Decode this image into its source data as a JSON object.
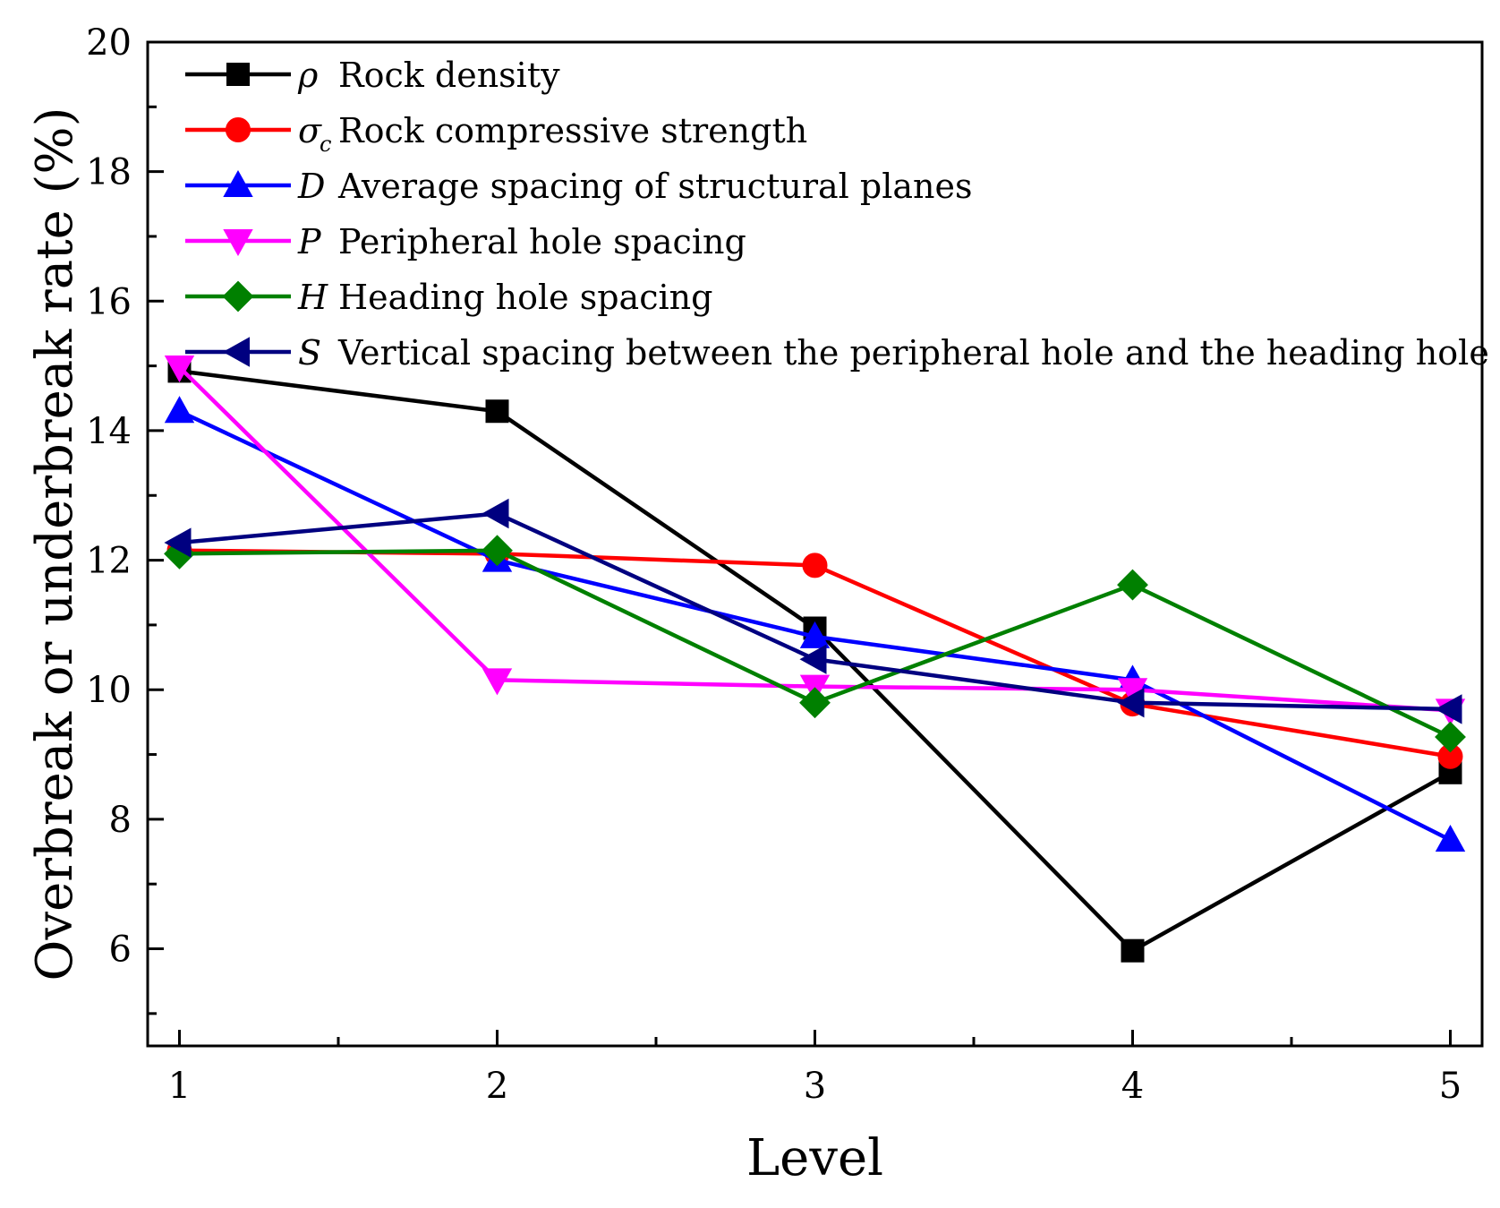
{
  "chart_data": {
    "type": "line",
    "title": "",
    "xlabel": "Level",
    "ylabel": "Overbreak or underbreak rate (%)",
    "x": [
      1,
      2,
      3,
      4,
      5
    ],
    "xlim": [
      0.9,
      5.1
    ],
    "ylim": [
      4.5,
      20
    ],
    "xticks": [
      "1",
      "2",
      "3",
      "4",
      "5"
    ],
    "yticks": [
      "6",
      "8",
      "10",
      "12",
      "14",
      "16",
      "18",
      "20"
    ],
    "legend_position": "top-left",
    "series": [
      {
        "symbol": "ρ",
        "subscript": "",
        "name": "Rock density",
        "color": "#000000",
        "marker": "square",
        "values": [
          14.92,
          14.3,
          10.95,
          5.97,
          8.72
        ]
      },
      {
        "symbol": "σ",
        "subscript": "c",
        "name": "Rock compressive strength",
        "color": "#ff0000",
        "marker": "circle",
        "values": [
          12.15,
          12.1,
          11.92,
          9.78,
          8.97
        ]
      },
      {
        "symbol": "D",
        "subscript": "",
        "name": "Average spacing of structural planes",
        "color": "#0000ff",
        "marker": "triangle-up",
        "values": [
          14.3,
          12.0,
          10.82,
          10.15,
          7.68
        ]
      },
      {
        "symbol": "P",
        "subscript": "",
        "name": "Peripheral hole spacing",
        "color": "#ff00ff",
        "marker": "triangle-down",
        "values": [
          14.98,
          10.15,
          10.05,
          10.0,
          9.68
        ]
      },
      {
        "symbol": "H",
        "subscript": "",
        "name": "Heading hole spacing",
        "color": "#008000",
        "marker": "diamond",
        "values": [
          12.1,
          12.15,
          9.8,
          11.62,
          9.27
        ]
      },
      {
        "symbol": "S",
        "subscript": "",
        "name": "Vertical spacing between the peripheral hole and the heading hole",
        "color": "#000080",
        "marker": "triangle-left",
        "values": [
          12.27,
          12.72,
          10.47,
          9.8,
          9.7
        ]
      }
    ]
  }
}
